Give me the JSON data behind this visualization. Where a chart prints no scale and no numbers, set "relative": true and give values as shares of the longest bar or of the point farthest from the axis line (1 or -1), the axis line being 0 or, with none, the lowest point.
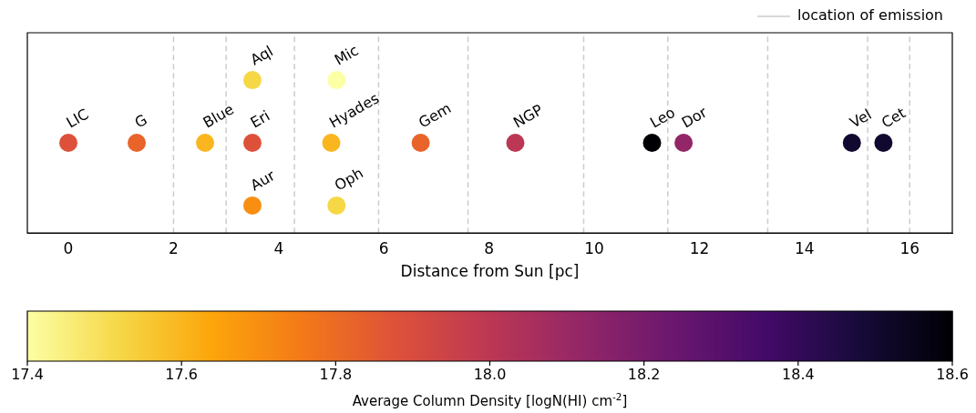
{
  "chart_data": {
    "type": "scatter",
    "xlabel": "Distance from Sun [pc]",
    "clabel": "Average Column Density [logN(HI) cm$^{-2}$]",
    "x": [
      0,
      1.3,
      2.6,
      3.5,
      5.0,
      6.7,
      8.5,
      11.1,
      11.7,
      14.9,
      15.5,
      3.5,
      5.1,
      3.5,
      5.1
    ],
    "values": [
      0.59,
      0.59,
      0.59,
      0.59,
      0.59,
      0.59,
      0.59,
      0.59,
      0.59,
      0.59,
      0.59,
      1,
      1,
      0.18,
      0.18
    ],
    "cvalues": [
      17.88,
      17.82,
      17.6,
      17.88,
      17.6,
      17.82,
      18.0,
      18.6,
      18.12,
      18.5,
      18.5,
      17.52,
      17.4,
      17.7,
      17.52
    ],
    "relative": true,
    "marker": "circle",
    "xlim": [
      -0.78,
      16.81
    ],
    "xticks": [
      0,
      2,
      4,
      6,
      8,
      10,
      12,
      14,
      16
    ],
    "clim": [
      17.4,
      18.6
    ],
    "cticks": [
      {
        "value": 17.4,
        "label": "17.4"
      },
      {
        "value": 17.6,
        "label": "17.6"
      },
      {
        "value": 17.8,
        "label": "17.8"
      },
      {
        "value": 18.0,
        "label": "18.0"
      },
      {
        "value": 18.2,
        "label": "18.2"
      },
      {
        "value": 18.4,
        "label": "18.4"
      },
      {
        "value": 18.6,
        "label": "18.6"
      }
    ],
    "ref_lines": [
      {
        "axis": "x",
        "value": 2.0,
        "label": "location of emission",
        "color": "#cccccc",
        "line_style": "dashed"
      },
      {
        "axis": "x",
        "value": 3.0,
        "color": "#cccccc",
        "line_style": "dashed"
      },
      {
        "axis": "x",
        "value": 4.3,
        "color": "#cccccc",
        "line_style": "dashed"
      },
      {
        "axis": "x",
        "value": 5.9,
        "color": "#cccccc",
        "line_style": "dashed"
      },
      {
        "axis": "x",
        "value": 7.6,
        "color": "#cccccc",
        "line_style": "dashed"
      },
      {
        "axis": "x",
        "value": 9.8,
        "color": "#cccccc",
        "line_style": "dashed"
      },
      {
        "axis": "x",
        "value": 11.4,
        "color": "#cccccc",
        "line_style": "dashed"
      },
      {
        "axis": "x",
        "value": 13.3,
        "color": "#cccccc",
        "line_style": "dashed"
      },
      {
        "axis": "x",
        "value": 15.2,
        "color": "#cccccc",
        "line_style": "dashed"
      },
      {
        "axis": "x",
        "value": 16.0,
        "color": "#cccccc",
        "line_style": "dashed"
      }
    ],
    "legend": "top right",
    "grid": false,
    "tick_labels": "x",
    "annotations": [
      {
        "text": "LIC",
        "x": 0,
        "y": 0.59
      },
      {
        "text": "G",
        "x": 1.3,
        "y": 0.59
      },
      {
        "text": "Blue",
        "x": 2.6,
        "y": 0.59
      },
      {
        "text": "Eri",
        "x": 3.5,
        "y": 0.59
      },
      {
        "text": "Hyades",
        "x": 5.0,
        "y": 0.59
      },
      {
        "text": "Gem",
        "x": 6.7,
        "y": 0.59
      },
      {
        "text": "NGP",
        "x": 8.5,
        "y": 0.59
      },
      {
        "text": "Leo",
        "x": 11.1,
        "y": 0.59
      },
      {
        "text": "Dor",
        "x": 11.7,
        "y": 0.59
      },
      {
        "text": "Vel",
        "x": 14.9,
        "y": 0.59
      },
      {
        "text": "Cet",
        "x": 15.5,
        "y": 0.59
      },
      {
        "text": "Aql",
        "x": 3.5,
        "y": 1
      },
      {
        "text": "Mic",
        "x": 5.1,
        "y": 1
      },
      {
        "text": "Aur",
        "x": 3.5,
        "y": 0.18
      },
      {
        "text": "Oph",
        "x": 5.1,
        "y": 0.18
      }
    ]
  }
}
